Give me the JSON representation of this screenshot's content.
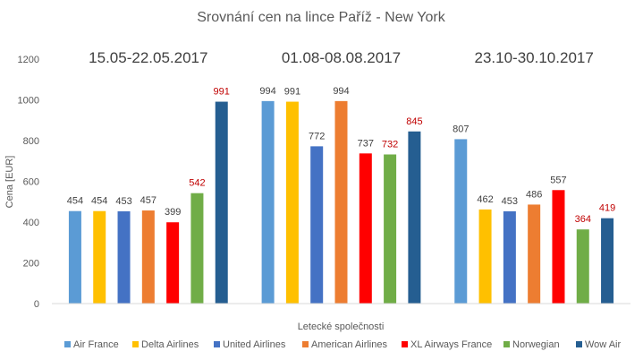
{
  "chart_data": {
    "type": "bar",
    "title": "Srovnání cen na lince Paříž - New York",
    "xlabel": "Letecké společnosti",
    "ylabel": "Cena [EUR]",
    "ylim": [
      0,
      1200
    ],
    "yticks": [
      "0",
      "200",
      "400",
      "600",
      "800",
      "1000",
      "1200"
    ],
    "grid": false,
    "legend_position": "bottom",
    "categories": [
      "15.05-22.05.2017",
      "01.08-08.08.2017",
      "23.10-30.10.2017"
    ],
    "series": [
      {
        "name": "Air France",
        "color": "#5B9BD5",
        "values": [
          454,
          994,
          807
        ],
        "highlight": [
          false,
          false,
          false
        ]
      },
      {
        "name": "Delta Airlines",
        "color": "#FFC000",
        "values": [
          454,
          991,
          462
        ],
        "highlight": [
          false,
          false,
          false
        ]
      },
      {
        "name": "United Airlines",
        "color": "#4472C4",
        "values": [
          453,
          772,
          453
        ],
        "highlight": [
          false,
          false,
          false
        ]
      },
      {
        "name": "American Airlines",
        "color": "#ED7D31",
        "values": [
          457,
          994,
          486
        ],
        "highlight": [
          false,
          false,
          false
        ]
      },
      {
        "name": "XL Airways France",
        "color": "#FF0000",
        "values": [
          399,
          737,
          557
        ],
        "highlight": [
          false,
          false,
          false
        ]
      },
      {
        "name": "Norwegian",
        "color": "#70AD47",
        "values": [
          542,
          732,
          364
        ],
        "highlight": [
          true,
          true,
          true
        ]
      },
      {
        "name": "Wow Air",
        "color": "#255E91",
        "values": [
          991,
          845,
          419
        ],
        "highlight": [
          true,
          true,
          true
        ]
      }
    ],
    "label_color": "#404040",
    "highlight_label_color": "#C00000"
  }
}
